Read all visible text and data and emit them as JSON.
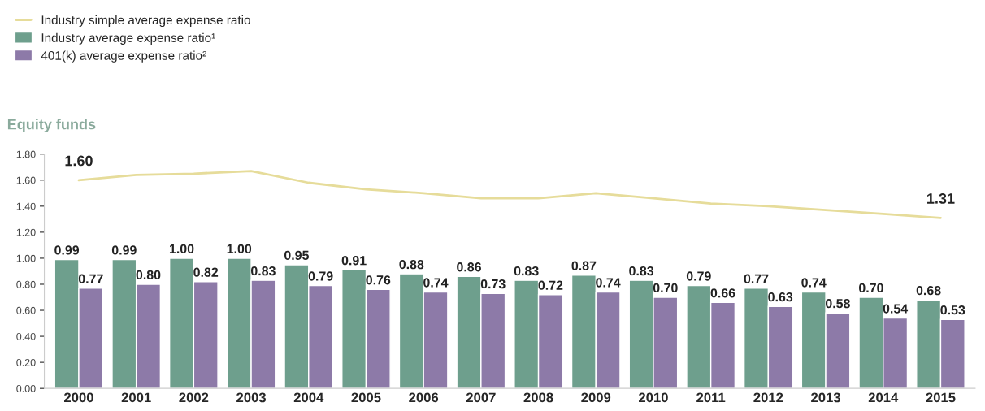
{
  "chart_data": {
    "type": "bar",
    "title": "Equity funds",
    "categories": [
      "2000",
      "2001",
      "2002",
      "2003",
      "2004",
      "2005",
      "2006",
      "2007",
      "2008",
      "2009",
      "2010",
      "2011",
      "2012",
      "2013",
      "2014",
      "2015"
    ],
    "series": [
      {
        "name": "Industry simple average expense ratio",
        "type": "line",
        "color": "#e6dc9a",
        "values": [
          1.6,
          1.64,
          1.65,
          1.67,
          1.58,
          1.53,
          1.5,
          1.46,
          1.46,
          1.5,
          1.46,
          1.42,
          1.4,
          1.37,
          1.34,
          1.31
        ],
        "value_labels": [
          "1.60",
          null,
          null,
          null,
          null,
          null,
          null,
          null,
          null,
          null,
          null,
          null,
          null,
          null,
          null,
          "1.31"
        ]
      },
      {
        "name": "Industry average expense ratio¹",
        "color": "#6e9f8d",
        "values": [
          0.99,
          0.99,
          1.0,
          1.0,
          0.95,
          0.91,
          0.88,
          0.86,
          0.83,
          0.87,
          0.83,
          0.79,
          0.77,
          0.74,
          0.7,
          0.68
        ],
        "value_labels": [
          "0.99",
          "0.99",
          "1.00",
          "1.00",
          "0.95",
          "0.91",
          "0.88",
          "0.86",
          "0.83",
          "0.87",
          "0.83",
          "0.79",
          "0.77",
          "0.74",
          "0.70",
          "0.68"
        ]
      },
      {
        "name": "401(k) average expense ratio²",
        "color": "#8d7aa8",
        "values": [
          0.77,
          0.8,
          0.82,
          0.83,
          0.79,
          0.76,
          0.74,
          0.73,
          0.72,
          0.74,
          0.7,
          0.66,
          0.63,
          0.58,
          0.54,
          0.53
        ],
        "value_labels": [
          "0.77",
          "0.80",
          "0.82",
          "0.83",
          "0.79",
          "0.76",
          "0.74",
          "0.73",
          "0.72",
          "0.74",
          "0.70",
          "0.66",
          "0.63",
          "0.58",
          "0.54",
          "0.53"
        ]
      }
    ],
    "ylim": [
      0,
      1.8
    ],
    "yticks": [
      {
        "value": 0,
        "label": "0.00"
      },
      {
        "value": 0.2,
        "label": "0.20"
      },
      {
        "value": 0.4,
        "label": "0.40"
      },
      {
        "value": 0.6,
        "label": "0.60"
      },
      {
        "value": 0.8,
        "label": "0.80"
      },
      {
        "value": 1.0,
        "label": "1.00"
      },
      {
        "value": 1.2,
        "label": "1.20"
      },
      {
        "value": 1.4,
        "label": "1.40"
      },
      {
        "value": 1.6,
        "label": "1.60"
      },
      {
        "value": 1.8,
        "label": "1.80"
      }
    ],
    "grid": false,
    "legend": "top left",
    "marker": "none",
    "line_style": "solid"
  }
}
